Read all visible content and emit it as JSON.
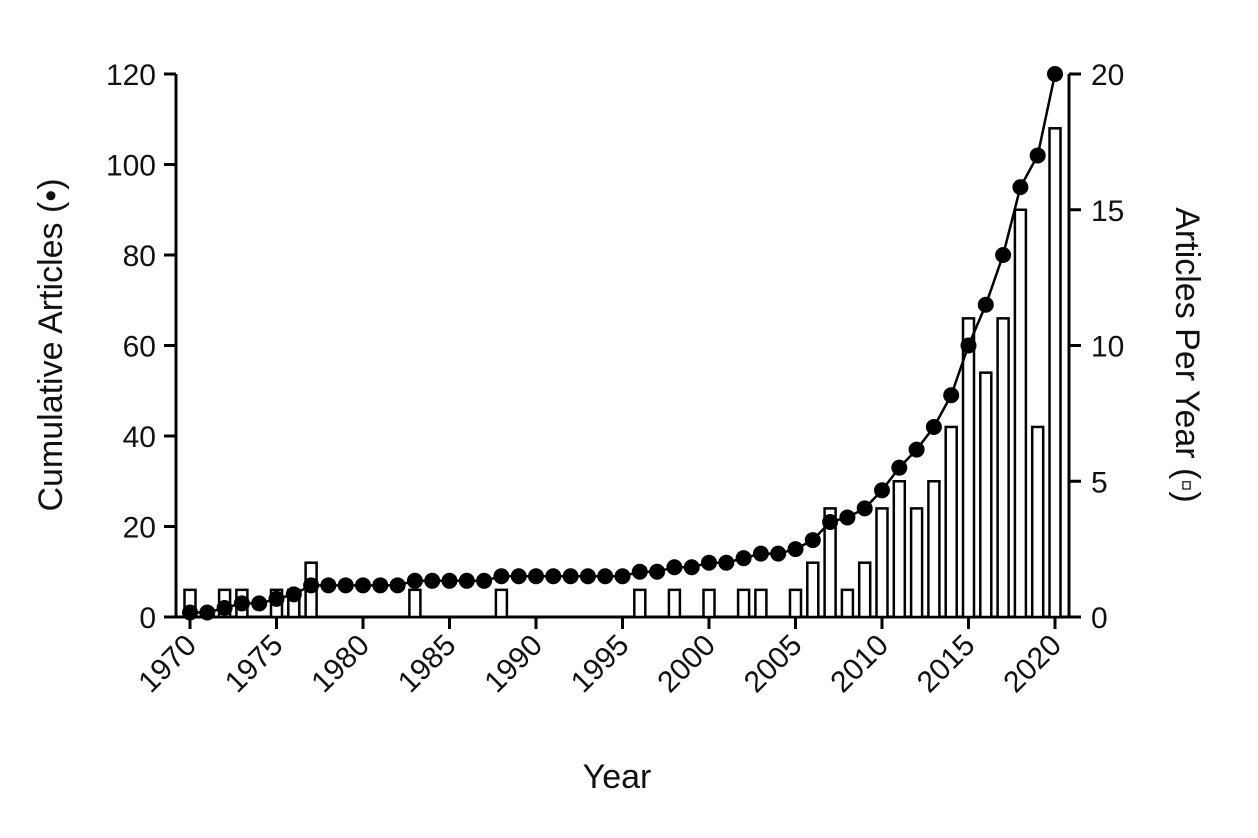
{
  "chart_data": {
    "type": "bar",
    "xlabel": "Year",
    "ylabel_left": "Cumulative Articles (•)",
    "ylabel_right": "Articles Per Year (▫)",
    "xlim": [
      1970,
      2020
    ],
    "ylim_left": [
      0,
      120
    ],
    "ylim_right": [
      0,
      20
    ],
    "x_ticks": [
      "1970",
      "1975",
      "1980",
      "1985",
      "1990",
      "1995",
      "2000",
      "2005",
      "2010",
      "2015",
      "2020"
    ],
    "y_ticks_left": [
      "0",
      "20",
      "40",
      "60",
      "80",
      "100",
      "120"
    ],
    "y_ticks_right": [
      "0",
      "5",
      "10",
      "15",
      "20"
    ],
    "grid": false,
    "bar_color": "#ffffff",
    "line_color": "#000000",
    "series": [
      {
        "axis": "right",
        "type": "bar",
        "x": [
          1970,
          1972,
          1973,
          1975,
          1976,
          1977,
          1983,
          1988,
          1996,
          1998,
          2000,
          2002,
          2003,
          2005,
          2006,
          2007,
          2008,
          2009,
          2010,
          2011,
          2012,
          2013,
          2014,
          2015,
          2016,
          2017,
          2018,
          2019,
          2020
        ],
        "values": [
          1,
          1,
          1,
          1,
          1,
          2,
          1,
          1,
          1,
          1,
          1,
          1,
          1,
          1,
          2,
          4,
          1,
          2,
          4,
          5,
          4,
          5,
          7,
          11,
          9,
          11,
          15,
          7,
          18
        ]
      },
      {
        "axis": "left",
        "type": "line",
        "x": [
          1970,
          1971,
          1972,
          1973,
          1974,
          1975,
          1976,
          1977,
          1978,
          1979,
          1980,
          1981,
          1982,
          1983,
          1984,
          1985,
          1986,
          1987,
          1988,
          1989,
          1990,
          1991,
          1992,
          1993,
          1994,
          1995,
          1996,
          1997,
          1998,
          1999,
          2000,
          2001,
          2002,
          2003,
          2004,
          2005,
          2006,
          2007,
          2008,
          2009,
          2010,
          2011,
          2012,
          2013,
          2014,
          2015,
          2016,
          2017,
          2018,
          2019,
          2020
        ],
        "values": [
          1,
          1,
          2,
          3,
          3,
          4,
          5,
          7,
          7,
          7,
          7,
          7,
          7,
          8,
          8,
          8,
          8,
          8,
          9,
          9,
          9,
          9,
          9,
          9,
          9,
          9,
          10,
          10,
          11,
          11,
          12,
          12,
          13,
          14,
          14,
          15,
          17,
          21,
          22,
          24,
          28,
          33,
          37,
          42,
          49,
          60,
          69,
          80,
          95,
          102,
          120
        ]
      }
    ]
  }
}
